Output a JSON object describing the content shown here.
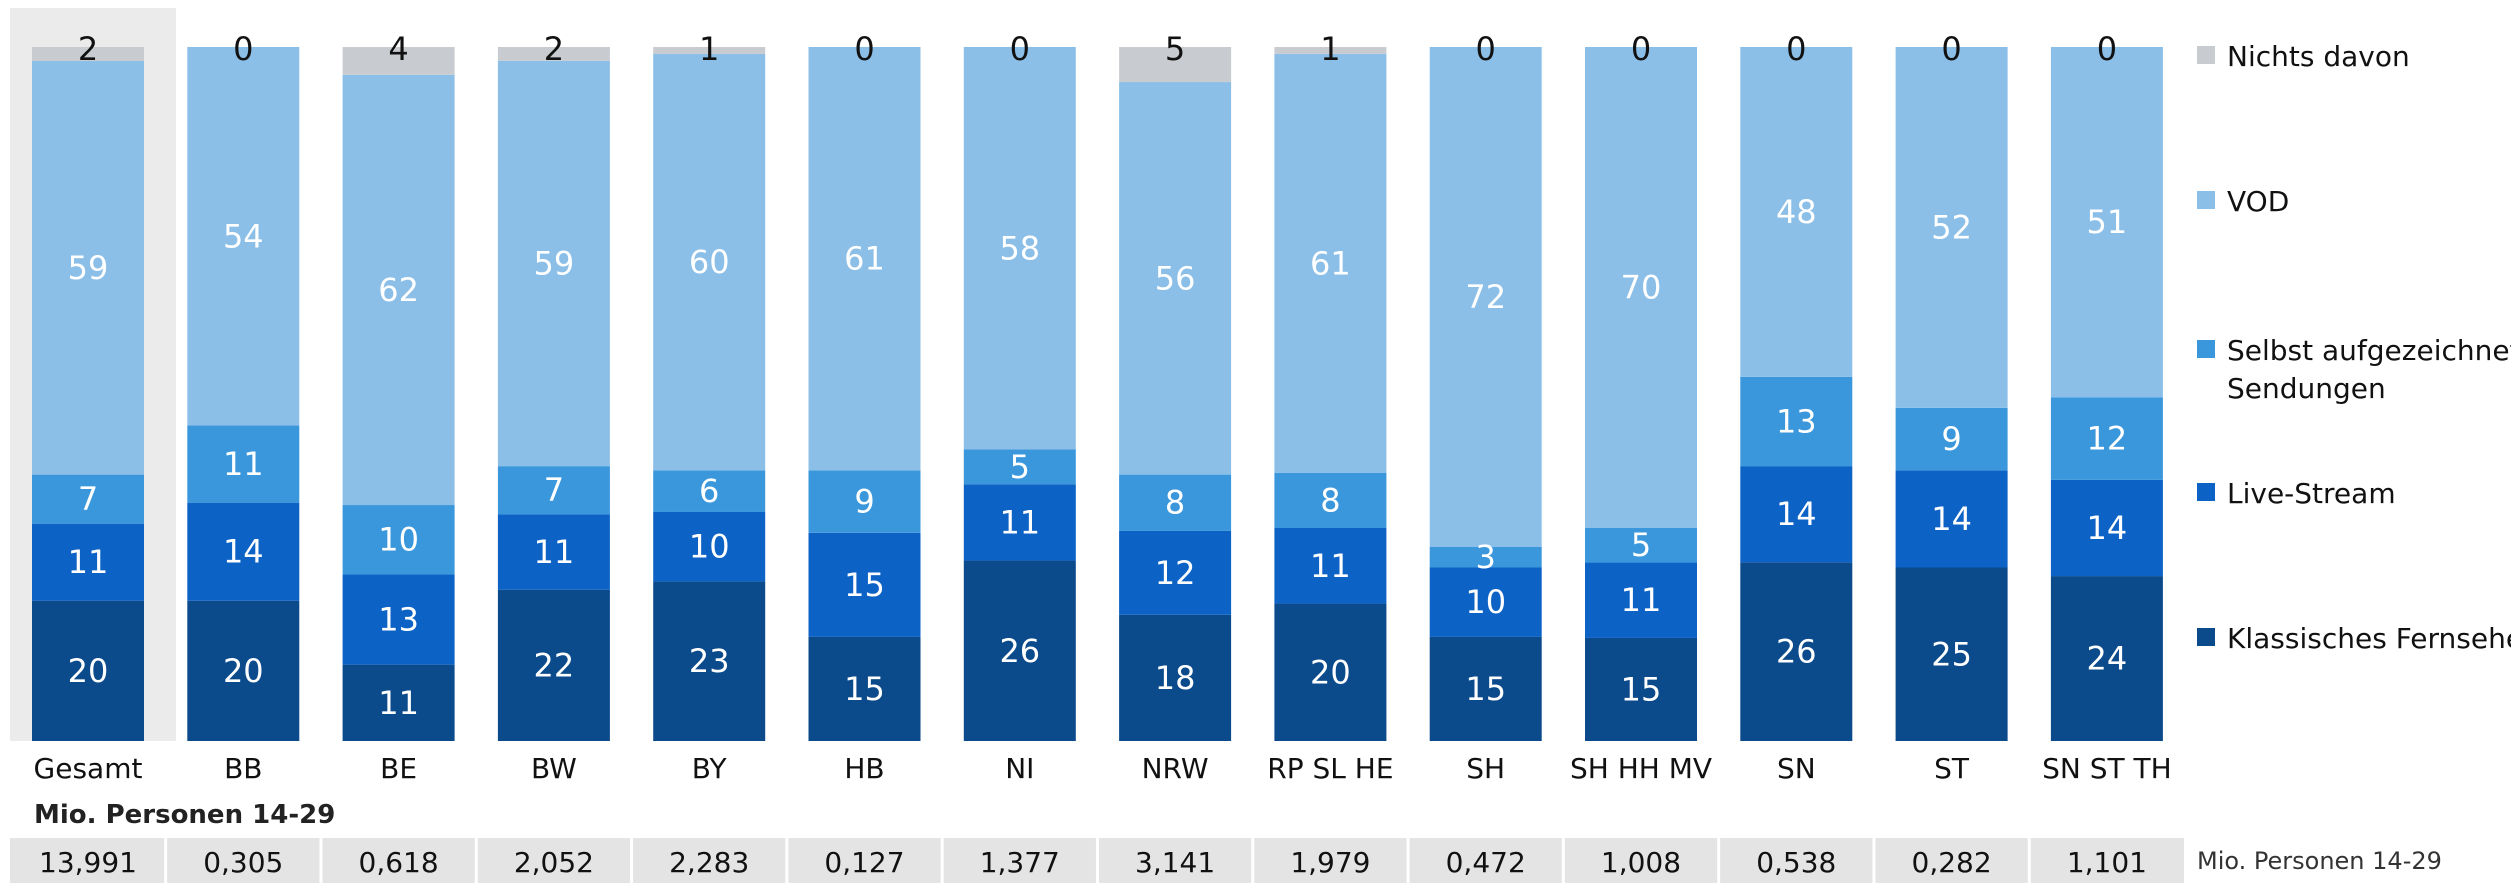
{
  "chart_data": {
    "type": "bar",
    "stacked": true,
    "normalized_percent": true,
    "categories": [
      "Gesamt",
      "BB",
      "BE",
      "BW",
      "BY",
      "HB",
      "NI",
      "NRW",
      "RP SL HE",
      "SH",
      "SH HH MV",
      "SN",
      "ST",
      "SN ST TH"
    ],
    "series": [
      {
        "name": "Klassisches Fernsehen",
        "color": "#0b4a8b",
        "label_color": "#ffffff",
        "values": [
          20,
          20,
          11,
          22,
          23,
          15,
          26,
          18,
          20,
          15,
          15,
          26,
          25,
          24
        ]
      },
      {
        "name": "Live-Stream",
        "color": "#0d62c6",
        "label_color": "#ffffff",
        "values": [
          11,
          14,
          13,
          11,
          10,
          15,
          11,
          12,
          11,
          10,
          11,
          14,
          14,
          14
        ]
      },
      {
        "name": "Selbst aufgezeichnete Sendungen",
        "color": "#3a97dc",
        "label_color": "#ffffff",
        "values": [
          7,
          11,
          10,
          7,
          6,
          9,
          5,
          8,
          8,
          3,
          5,
          13,
          9,
          12
        ]
      },
      {
        "name": "VOD",
        "color": "#8bbfe8",
        "label_color": "#ffffff",
        "values": [
          59,
          54,
          62,
          59,
          60,
          61,
          58,
          56,
          61,
          72,
          70,
          48,
          52,
          51
        ]
      },
      {
        "name": "Nichts davon",
        "color": "#c8cbcf",
        "label_color": "#111111",
        "values": [
          2,
          0,
          4,
          2,
          1,
          0,
          0,
          5,
          1,
          0,
          0,
          0,
          0,
          0
        ]
      }
    ],
    "legend_position": "right",
    "highlighted_category": "Gesamt",
    "population": {
      "label": "Mio. Personen 14-29",
      "row_note": "Mio.  Personen 14-29",
      "values": [
        "13,991",
        "0,305",
        "0,618",
        "2,052",
        "2,283",
        "0,127",
        "1,377",
        "3,141",
        "1,979",
        "0,472",
        "1,008",
        "0,538",
        "0,282",
        "1,101"
      ]
    }
  }
}
